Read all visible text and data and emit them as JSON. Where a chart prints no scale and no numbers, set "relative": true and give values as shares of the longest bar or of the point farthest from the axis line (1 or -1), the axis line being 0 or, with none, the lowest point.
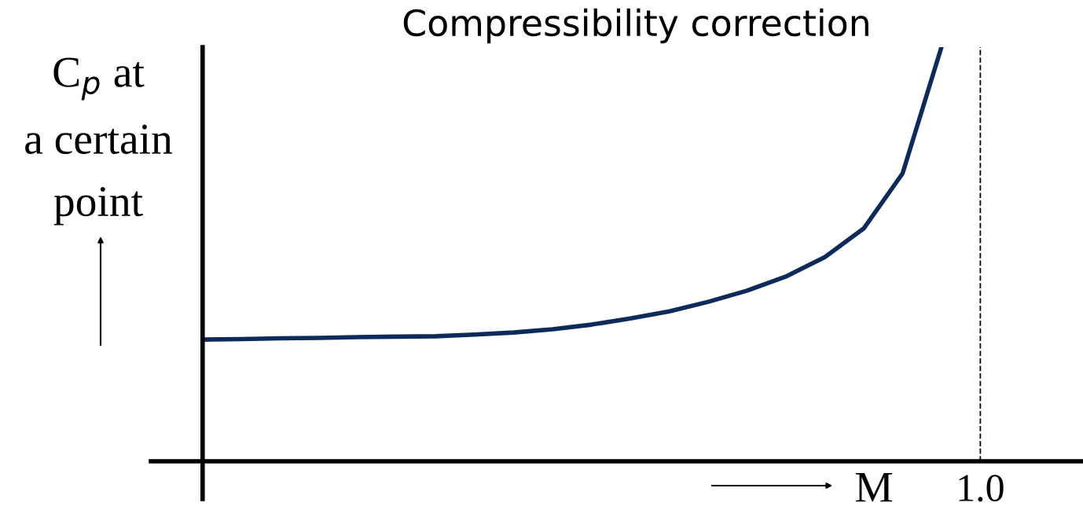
{
  "chart_data": {
    "type": "line",
    "title": "Compressibility correction",
    "xlabel": "M",
    "ylabel": "C$_{p}$ at\na certain\npoint",
    "relative": true,
    "legend": false,
    "marker": "none",
    "line_style": "solid",
    "categories": [
      null,
      null,
      null,
      null,
      null,
      null,
      null,
      null,
      null,
      null,
      null,
      null,
      null,
      null,
      null,
      null,
      null,
      null,
      null,
      null,
      null
    ],
    "series": [
      {
        "color": "#0d2b5a",
        "values": [
          0.294,
          0.295,
          0.297,
          0.298,
          0.3,
          0.301,
          0.302,
          0.306,
          0.311,
          0.319,
          0.33,
          0.345,
          0.362,
          0.385,
          0.412,
          0.446,
          0.493,
          0.562,
          0.695,
          1.0,
          null
        ]
      }
    ],
    "ref_lines": [
      {
        "axis": "x",
        "label": "1.0",
        "color": "#000000",
        "line_style": "dashed"
      }
    ]
  }
}
